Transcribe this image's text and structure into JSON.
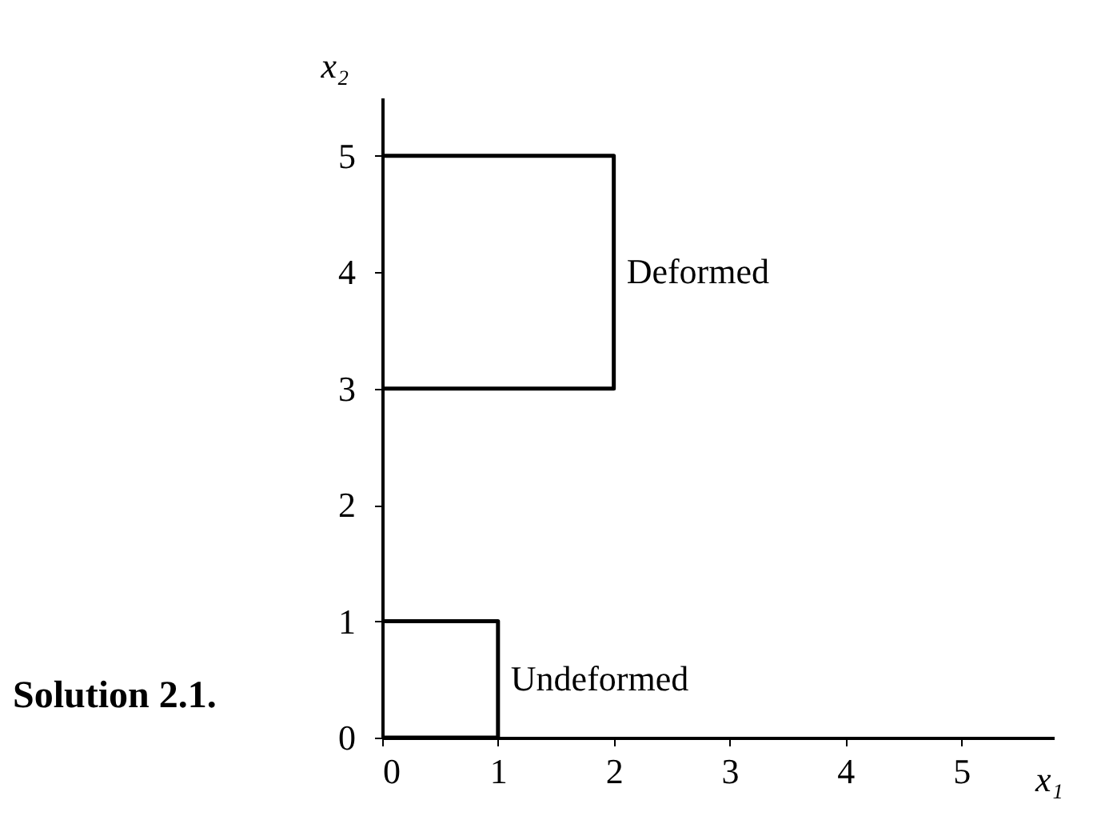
{
  "chart_data": {
    "type": "line",
    "title": "Solution 2.1.",
    "xlabel": "x₁",
    "ylabel": "x₂",
    "xlim": [
      0,
      5.8
    ],
    "ylim": [
      0,
      5.5
    ],
    "xticks": [
      0,
      1,
      2,
      3,
      4,
      5
    ],
    "yticks": [
      0,
      1,
      2,
      3,
      4,
      5
    ],
    "grid": false,
    "legend": false,
    "marker": "none",
    "line_style": "solid",
    "series": [
      {
        "name": "Undeformed",
        "color": "#000000",
        "x": [
          0,
          1,
          1,
          0
        ],
        "values": [
          0,
          0,
          1,
          1
        ]
      },
      {
        "name": "Deformed",
        "color": "#000000",
        "x": [
          0,
          2,
          2,
          0
        ],
        "values": [
          3,
          3,
          5,
          5
        ]
      }
    ]
  }
}
